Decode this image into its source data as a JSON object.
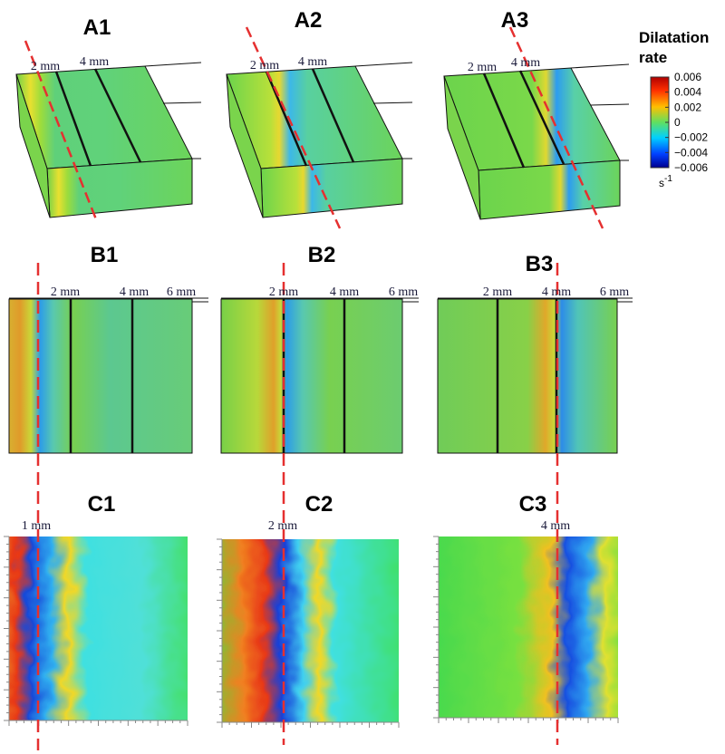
{
  "panels": {
    "A1": {
      "title": "A1",
      "labels": [
        "2 mm",
        "4 mm"
      ]
    },
    "A2": {
      "title": "A2",
      "labels": [
        "2 mm",
        "4 mm"
      ]
    },
    "A3": {
      "title": "A3",
      "labels": [
        "2 mm",
        "4 mm"
      ]
    },
    "B1": {
      "title": "B1",
      "labels": [
        "2 mm",
        "4 mm",
        "6 mm"
      ]
    },
    "B2": {
      "title": "B2",
      "labels": [
        "2 mm",
        "4 mm",
        "6 mm"
      ]
    },
    "B3": {
      "title": "B3",
      "labels": [
        "2 mm",
        "4 mm",
        "6 mm"
      ]
    },
    "C1": {
      "title": "C1",
      "labels": [
        "1 mm"
      ]
    },
    "C2": {
      "title": "C2",
      "labels": [
        "2 mm"
      ]
    },
    "C3": {
      "title": "C3",
      "labels": [
        "4 mm"
      ]
    }
  },
  "colorbar": {
    "title": [
      "Dilatation",
      "rate"
    ],
    "ticks": [
      "0.006",
      "0.004",
      "0.002",
      "0",
      "−0.002",
      "−0.004",
      "−0.006"
    ],
    "unit": "s",
    "unit_exponent": "-1"
  }
}
